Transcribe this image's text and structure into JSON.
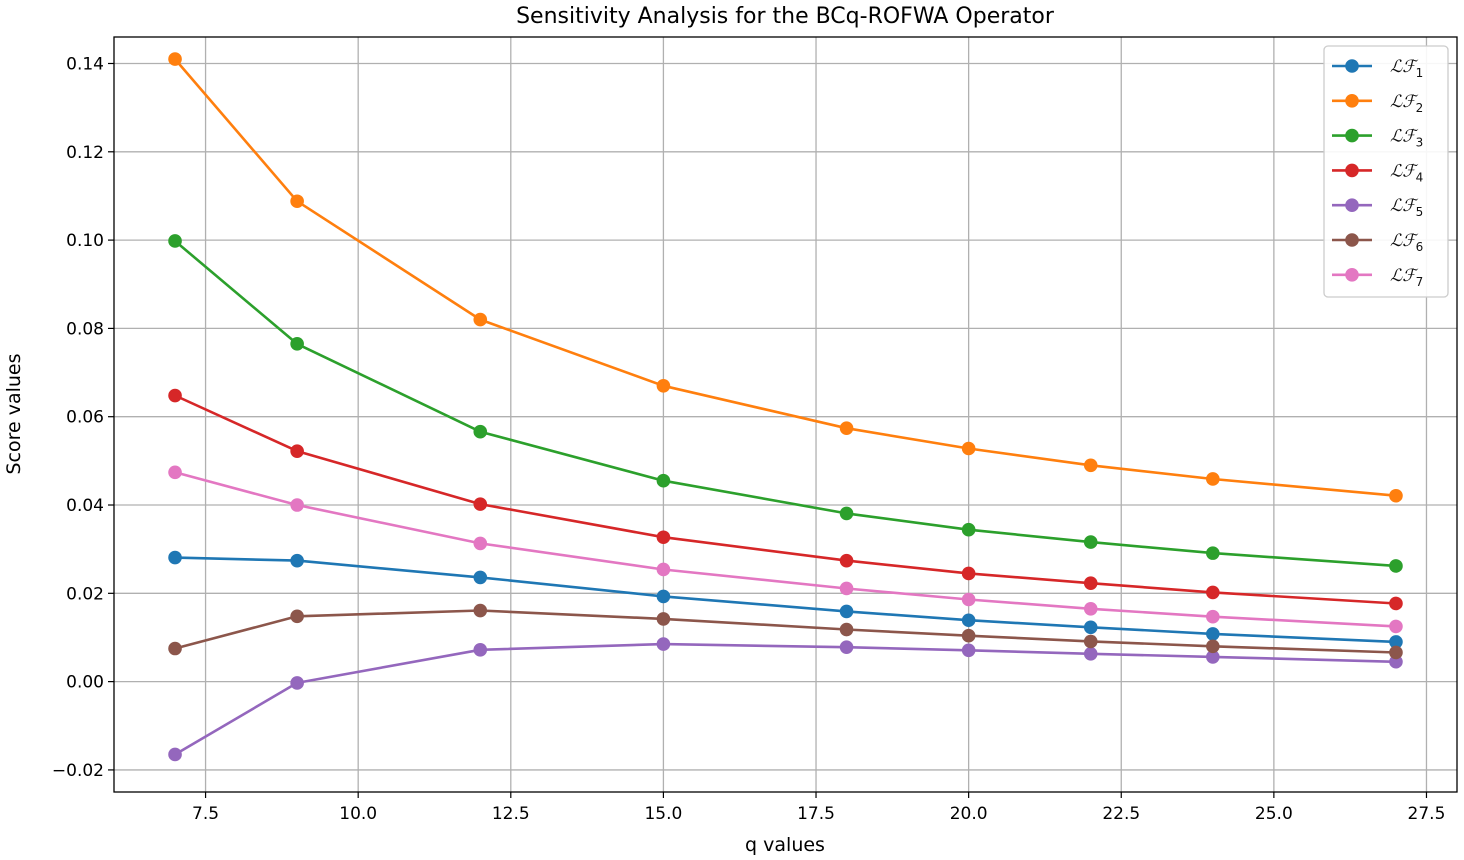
{
  "chart_data": {
    "type": "line",
    "title": "Sensitivity Analysis for the BCq-ROFWA Operator",
    "xlabel": "q values",
    "ylabel": "Score values",
    "xlim": [
      6.0,
      28.0
    ],
    "ylim": [
      -0.025,
      0.146
    ],
    "x_ticks": [
      7.5,
      10.0,
      12.5,
      15.0,
      17.5,
      20.0,
      22.5,
      25.0,
      27.5
    ],
    "x_tick_labels": [
      "7.5",
      "10.0",
      "12.5",
      "15.0",
      "17.5",
      "20.0",
      "22.5",
      "25.0",
      "27.5"
    ],
    "y_ticks": [
      -0.02,
      0.0,
      0.02,
      0.04,
      0.06,
      0.08,
      0.1,
      0.12,
      0.14
    ],
    "y_tick_labels": [
      "−0.02",
      "0.00",
      "0.02",
      "0.04",
      "0.06",
      "0.08",
      "0.10",
      "0.12",
      "0.14"
    ],
    "grid": true,
    "legend_position": "top-right",
    "x": [
      7,
      9,
      12,
      15,
      18,
      20,
      22,
      24,
      27
    ],
    "series": [
      {
        "name": "ℒℱ",
        "subscript": "1",
        "color": "#1f77b4",
        "values": [
          0.0281,
          0.0274,
          0.0236,
          0.0193,
          0.0159,
          0.0139,
          0.0123,
          0.0108,
          0.009
        ]
      },
      {
        "name": "ℒℱ",
        "subscript": "2",
        "color": "#ff7f0e",
        "values": [
          0.141,
          0.1088,
          0.082,
          0.067,
          0.0574,
          0.0528,
          0.049,
          0.0459,
          0.0421
        ]
      },
      {
        "name": "ℒℱ",
        "subscript": "3",
        "color": "#2ca02c",
        "values": [
          0.0998,
          0.0765,
          0.0566,
          0.0455,
          0.0381,
          0.0344,
          0.0316,
          0.0291,
          0.0262
        ]
      },
      {
        "name": "ℒℱ",
        "subscript": "4",
        "color": "#d62728",
        "values": [
          0.0648,
          0.0522,
          0.0402,
          0.0327,
          0.0274,
          0.0245,
          0.0223,
          0.0202,
          0.0177
        ]
      },
      {
        "name": "ℒℱ",
        "subscript": "5",
        "color": "#9467bd",
        "values": [
          -0.0165,
          -0.0003,
          0.0072,
          0.0085,
          0.0078,
          0.0071,
          0.0063,
          0.0056,
          0.0045
        ]
      },
      {
        "name": "ℒℱ",
        "subscript": "6",
        "color": "#8c564b",
        "values": [
          0.0075,
          0.0148,
          0.0161,
          0.0142,
          0.0118,
          0.0104,
          0.0091,
          0.008,
          0.0066
        ]
      },
      {
        "name": "ℒℱ",
        "subscript": "7",
        "color": "#e377c2",
        "values": [
          0.0474,
          0.04,
          0.0313,
          0.0254,
          0.0211,
          0.0186,
          0.0165,
          0.0147,
          0.0125
        ]
      }
    ]
  }
}
